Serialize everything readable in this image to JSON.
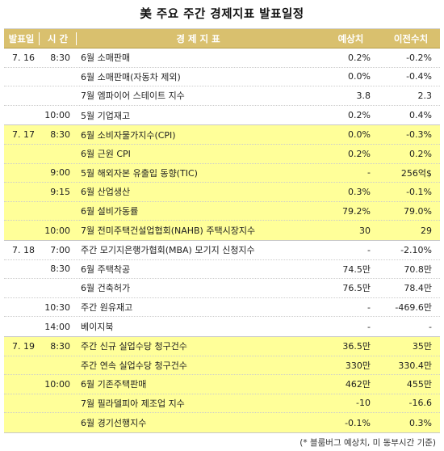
{
  "title": "美 주요 주간 경제지표 발표일정",
  "columns": {
    "date": "발표일",
    "time": "시 간",
    "indicator": "경 제 지 표",
    "expected": "예상치",
    "previous": "이전수치"
  },
  "groups": [
    {
      "date": "7. 16",
      "rows": [
        {
          "time": "8:30",
          "indicator": "6월 소매판매",
          "expected": "0.2%",
          "previous": "-0.2%"
        },
        {
          "time": "",
          "indicator": "6월 소매판매(자동차 제외)",
          "expected": "0.0%",
          "previous": "-0.4%"
        },
        {
          "time": "",
          "indicator": "7월 엠파이어 스테이트 지수",
          "expected": "3.8",
          "previous": "2.3"
        },
        {
          "time": "10:00",
          "indicator": "5월 기업재고",
          "expected": "0.2%",
          "previous": "0.4%"
        }
      ]
    },
    {
      "date": "7. 17",
      "rows": [
        {
          "time": "8:30",
          "indicator": "6월 소비자물가지수(CPI)",
          "expected": "0.0%",
          "previous": "-0.3%"
        },
        {
          "time": "",
          "indicator": "6월 근원 CPI",
          "expected": "0.2%",
          "previous": "0.2%"
        },
        {
          "time": "9:00",
          "indicator": "5월 해외자본 유출입 동향(TIC)",
          "expected": "-",
          "previous": "256억$"
        },
        {
          "time": "9:15",
          "indicator": "6월 산업생산",
          "expected": "0.3%",
          "previous": "-0.1%"
        },
        {
          "time": "",
          "indicator": "6월 설비가동률",
          "expected": "79.2%",
          "previous": "79.0%"
        },
        {
          "time": "10:00",
          "indicator": "7월 전미주택건설업협회(NAHB) 주택시장지수",
          "expected": "30",
          "previous": "29"
        }
      ]
    },
    {
      "date": "7. 18",
      "rows": [
        {
          "time": "7:00",
          "indicator": "주간 모기지은행가협회(MBA) 모기지 신청지수",
          "expected": "-",
          "previous": "-2.10%"
        },
        {
          "time": "8:30",
          "indicator": "6월 주택착공",
          "expected": "74.5만",
          "previous": "70.8만"
        },
        {
          "time": "",
          "indicator": "6월 건축허가",
          "expected": "76.5만",
          "previous": "78.4만"
        },
        {
          "time": "10:30",
          "indicator": "주간 원유재고",
          "expected": "-",
          "previous": "-469.6만"
        },
        {
          "time": "14:00",
          "indicator": "베이지북",
          "expected": "-",
          "previous": "-"
        }
      ]
    },
    {
      "date": "7. 19",
      "rows": [
        {
          "time": "8:30",
          "indicator": "주간 신규 실업수당 청구건수",
          "expected": "36.5만",
          "previous": "35만"
        },
        {
          "time": "",
          "indicator": "주간 연속 실업수당 청구건수",
          "expected": "330만",
          "previous": "330.4만"
        },
        {
          "time": "10:00",
          "indicator": "6월 기존주택판매",
          "expected": "462만",
          "previous": "455만"
        },
        {
          "time": "",
          "indicator": "7월 필라델피아 제조업 지수",
          "expected": "-10",
          "previous": "-16.6"
        },
        {
          "time": "",
          "indicator": "6월 경기선행지수",
          "expected": "-0.1%",
          "previous": "0.3%"
        }
      ]
    }
  ],
  "note": "(* 블룸버그 예상치, 미 동부시간 기준)",
  "colors": {
    "header": "#d9c06e",
    "band_white": "#ffffff",
    "band_yellow": "#ffff99"
  }
}
